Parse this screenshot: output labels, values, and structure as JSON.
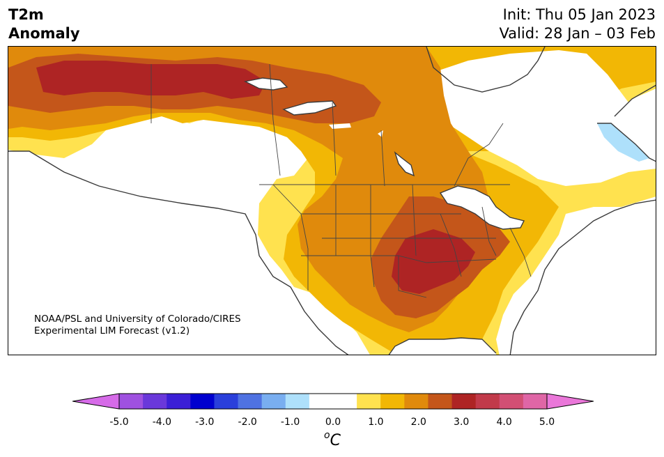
{
  "header": {
    "title_line1": "T2m",
    "title_line2": "Anomaly",
    "init": "Init: Thu 05 Jan 2023",
    "valid": "Valid: 28 Jan – 03 Feb"
  },
  "credit": {
    "line1": "NOAA/PSL and University of Colorado/CIRES",
    "line2": "Experimental LIM Forecast (v1.2)"
  },
  "colorbar": {
    "unit_base": "C",
    "unit_sup": "o",
    "colors": [
      "#d66be8",
      "#9f51e0",
      "#6a38da",
      "#3b1fd6",
      "#0000cf",
      "#2a3fdb",
      "#4f72e2",
      "#79aef0",
      "#aee0fb",
      "#ffffff",
      "#ffffff",
      "#ffe24f",
      "#f2b705",
      "#e08a0c",
      "#c4561a",
      "#ae2424",
      "#c13a4a",
      "#d24f74",
      "#df66a6",
      "#ea77d9"
    ],
    "ticks": [
      "-5.0",
      "-4.0",
      "-3.0",
      "-2.0",
      "-1.0",
      "0.0",
      "1.0",
      "2.0",
      "3.0",
      "4.0",
      "5.0"
    ]
  },
  "map": {
    "region": "North America",
    "levels": {
      "l1": "#ffe24f",
      "l2": "#f2b705",
      "l3": "#e08a0c",
      "l4": "#c4561a",
      "l5": "#ae2424",
      "neg1": "#aee0fb"
    }
  }
}
